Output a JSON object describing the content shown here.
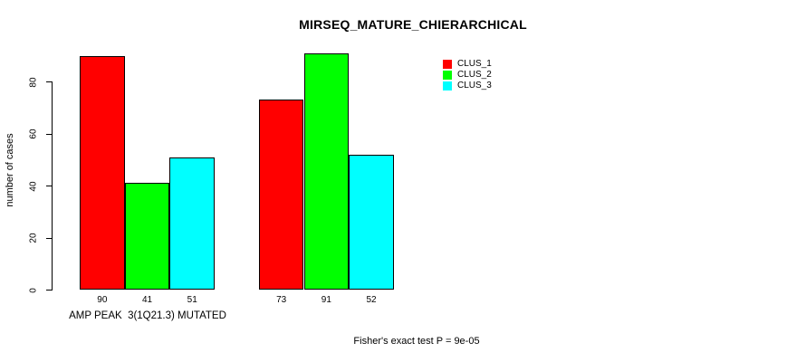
{
  "chart_data": {
    "type": "bar",
    "title": "MIRSEQ_MATURE_CHIERARCHICAL",
    "ylabel": "number of cases",
    "xlabel": "AMP PEAK  3(1Q21.3) MUTATED",
    "annotation": "Fisher's exact test P = 9e-05",
    "categories": [
      "AMP PEAK  3(1Q21.3) MUTATED",
      ""
    ],
    "series": [
      {
        "name": "CLUS_1",
        "color": "#ff0000",
        "values": [
          90,
          73
        ]
      },
      {
        "name": "CLUS_2",
        "color": "#00ff00",
        "values": [
          41,
          91
        ]
      },
      {
        "name": "CLUS_3",
        "color": "#00ffff",
        "values": [
          51,
          52
        ]
      }
    ],
    "bar_value_labels": [
      [
        "90",
        "41",
        "51"
      ],
      [
        "73",
        "91",
        "52"
      ]
    ],
    "yticks": [
      0,
      20,
      40,
      60,
      80
    ],
    "ylim": [
      0,
      95
    ],
    "grid": false,
    "legend_position": "top-right",
    "axis_color": "#000000",
    "background_color": "#ffffff"
  }
}
